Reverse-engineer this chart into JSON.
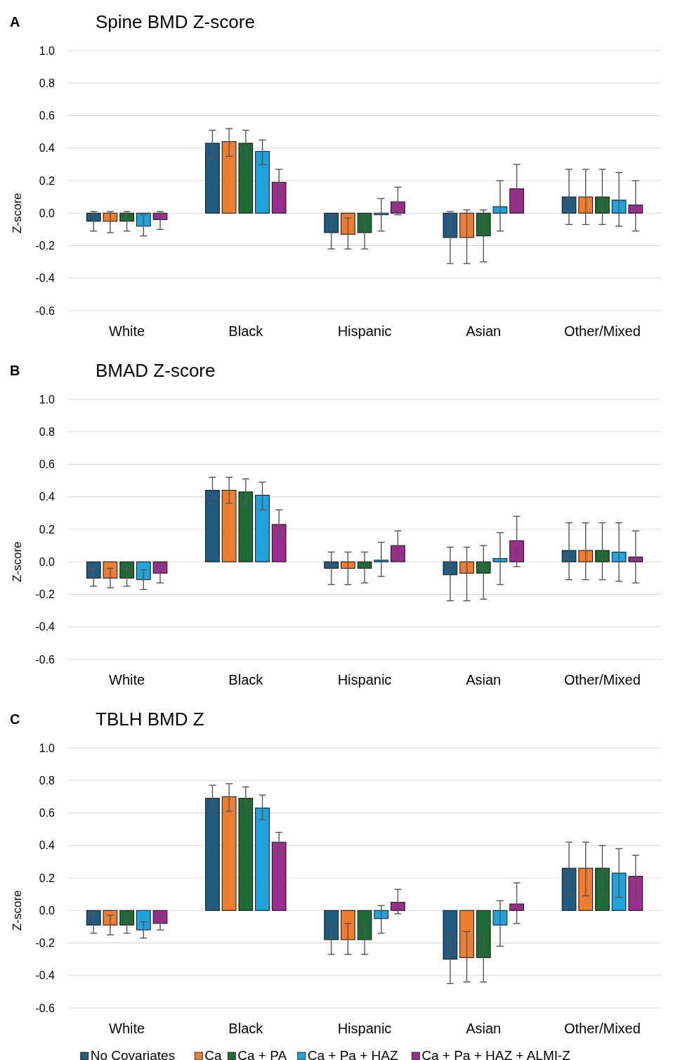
{
  "chart_data": [
    {
      "type": "bar",
      "title": "Spine BMD Z-score",
      "ylabel": "Z-score",
      "annotations": [
        "A"
      ],
      "categories": [
        "White",
        "Black",
        "Hispanic",
        "Asian",
        "Other/Mixed"
      ],
      "ylim": [
        -0.6,
        1.0
      ],
      "yticks": [
        {
          "value": -0.6,
          "label": "-0.6"
        },
        {
          "value": -0.4,
          "label": "-0.4"
        },
        {
          "value": -0.2,
          "label": "-0.2"
        },
        {
          "value": 0,
          "label": "0.0"
        },
        {
          "value": 0.2,
          "label": "0.2"
        },
        {
          "value": 0.4,
          "label": "0.4"
        },
        {
          "value": 0.6,
          "label": "0.6"
        },
        {
          "value": 0.8,
          "label": "0.8"
        },
        {
          "value": 1.0,
          "label": "1.0"
        }
      ],
      "grid": "y",
      "legend": false,
      "series": [
        {
          "color": "#1f5c80",
          "values": [
            -0.05,
            0.43,
            -0.12,
            -0.15,
            0.1
          ],
          "errors": [
            [
              -0.11,
              0.01
            ],
            [
              0.34,
              0.51
            ],
            [
              -0.22,
              -0.03
            ],
            [
              -0.31,
              0.01
            ],
            [
              -0.07,
              0.27
            ]
          ]
        },
        {
          "color": "#ed7d31",
          "values": [
            -0.05,
            0.44,
            -0.13,
            -0.15,
            0.1
          ],
          "errors": [
            [
              -0.12,
              0.01
            ],
            [
              0.35,
              0.52
            ],
            [
              -0.22,
              -0.03
            ],
            [
              -0.31,
              0.02
            ],
            [
              -0.07,
              0.27
            ]
          ]
        },
        {
          "color": "#1e6b35",
          "values": [
            -0.05,
            0.43,
            -0.12,
            -0.14,
            0.1
          ],
          "errors": [
            [
              -0.11,
              0.01
            ],
            [
              0.34,
              0.51
            ],
            [
              -0.22,
              -0.03
            ],
            [
              -0.3,
              0.02
            ],
            [
              -0.07,
              0.27
            ]
          ]
        },
        {
          "color": "#1ea3dc",
          "values": [
            -0.08,
            0.38,
            -0.01,
            0.04,
            0.08
          ],
          "errors": [
            [
              -0.14,
              -0.01
            ],
            [
              0.3,
              0.45
            ],
            [
              -0.11,
              0.09
            ],
            [
              -0.11,
              0.2
            ],
            [
              -0.08,
              0.25
            ]
          ]
        },
        {
          "color": "#9b2d8f",
          "values": [
            -0.04,
            0.19,
            0.07,
            0.15,
            0.05
          ],
          "errors": [
            [
              -0.1,
              0.01
            ],
            [
              0.11,
              0.27
            ],
            [
              -0.01,
              0.16
            ],
            [
              0.01,
              0.3
            ],
            [
              -0.11,
              0.2
            ]
          ]
        }
      ]
    },
    {
      "type": "bar",
      "title": "BMAD Z-score",
      "ylabel": "Z-score",
      "annotations": [
        "B"
      ],
      "categories": [
        "White",
        "Black",
        "Hispanic",
        "Asian",
        "Other/Mixed"
      ],
      "ylim": [
        -0.6,
        1.0
      ],
      "yticks": [
        {
          "value": -0.6,
          "label": "-0.6"
        },
        {
          "value": -0.4,
          "label": "-0.4"
        },
        {
          "value": -0.2,
          "label": "-0.2"
        },
        {
          "value": 0,
          "label": "0.0"
        },
        {
          "value": 0.2,
          "label": "0.2"
        },
        {
          "value": 0.4,
          "label": "0.4"
        },
        {
          "value": 0.6,
          "label": "0.6"
        },
        {
          "value": 0.8,
          "label": "0.8"
        },
        {
          "value": 1.0,
          "label": "1.0"
        }
      ],
      "grid": "y",
      "legend": false,
      "series": [
        {
          "color": "#1f5c80",
          "values": [
            -0.1,
            0.44,
            -0.04,
            -0.08,
            0.07
          ],
          "errors": [
            [
              -0.15,
              -0.04
            ],
            [
              0.36,
              0.52
            ],
            [
              -0.14,
              0.06
            ],
            [
              -0.24,
              0.09
            ],
            [
              -0.11,
              0.24
            ]
          ]
        },
        {
          "color": "#ed7d31",
          "values": [
            -0.1,
            0.44,
            -0.04,
            -0.07,
            0.07
          ],
          "errors": [
            [
              -0.16,
              -0.04
            ],
            [
              0.36,
              0.52
            ],
            [
              -0.14,
              0.06
            ],
            [
              -0.24,
              0.09
            ],
            [
              -0.11,
              0.24
            ]
          ]
        },
        {
          "color": "#1e6b35",
          "values": [
            -0.1,
            0.43,
            -0.04,
            -0.07,
            0.07
          ],
          "errors": [
            [
              -0.15,
              -0.04
            ],
            [
              0.35,
              0.51
            ],
            [
              -0.13,
              0.06
            ],
            [
              -0.23,
              0.1
            ],
            [
              -0.11,
              0.24
            ]
          ]
        },
        {
          "color": "#1ea3dc",
          "values": [
            -0.11,
            0.41,
            0.01,
            0.02,
            0.06
          ],
          "errors": [
            [
              -0.17,
              -0.05
            ],
            [
              0.32,
              0.49
            ],
            [
              -0.09,
              0.12
            ],
            [
              -0.14,
              0.18
            ],
            [
              -0.12,
              0.24
            ]
          ]
        },
        {
          "color": "#9b2d8f",
          "values": [
            -0.07,
            0.23,
            0.1,
            0.13,
            0.03
          ],
          "errors": [
            [
              -0.13,
              -0.01
            ],
            [
              0.15,
              0.32
            ],
            [
              0.0,
              0.19
            ],
            [
              -0.03,
              0.28
            ],
            [
              -0.13,
              0.19
            ]
          ]
        }
      ]
    },
    {
      "type": "bar",
      "title": "TBLH BMD Z",
      "ylabel": "Z-score",
      "annotations": [
        "C"
      ],
      "categories": [
        "White",
        "Black",
        "Hispanic",
        "Asian",
        "Other/Mixed"
      ],
      "ylim": [
        -0.6,
        1.0
      ],
      "yticks": [
        {
          "value": -0.6,
          "label": "-0.6"
        },
        {
          "value": -0.4,
          "label": "-0.4"
        },
        {
          "value": -0.2,
          "label": "-0.2"
        },
        {
          "value": 0,
          "label": "0.0"
        },
        {
          "value": 0.2,
          "label": "0.2"
        },
        {
          "value": 0.4,
          "label": "0.4"
        },
        {
          "value": 0.6,
          "label": "0.6"
        },
        {
          "value": 0.8,
          "label": "0.8"
        },
        {
          "value": 1.0,
          "label": "1.0"
        }
      ],
      "grid": "y",
      "legend": "bottom",
      "series": [
        {
          "name": "No Covariates",
          "color": "#1f5c80",
          "values": [
            -0.09,
            0.69,
            -0.18,
            -0.3,
            0.26
          ],
          "errors": [
            [
              -0.14,
              -0.02
            ],
            [
              0.6,
              0.77
            ],
            [
              -0.27,
              -0.08
            ],
            [
              -0.45,
              -0.14
            ],
            [
              0.09,
              0.42
            ]
          ]
        },
        {
          "name": "Ca",
          "color": "#ed7d31",
          "values": [
            -0.09,
            0.7,
            -0.18,
            -0.29,
            0.26
          ],
          "errors": [
            [
              -0.15,
              -0.03
            ],
            [
              0.61,
              0.78
            ],
            [
              -0.27,
              -0.08
            ],
            [
              -0.44,
              -0.13
            ],
            [
              0.09,
              0.42
            ]
          ]
        },
        {
          "name": "Ca + PA",
          "color": "#1e6b35",
          "values": [
            -0.09,
            0.69,
            -0.18,
            -0.29,
            0.26
          ],
          "errors": [
            [
              -0.14,
              -0.03
            ],
            [
              0.6,
              0.76
            ],
            [
              -0.27,
              -0.09
            ],
            [
              -0.44,
              -0.14
            ],
            [
              0.09,
              0.4
            ]
          ]
        },
        {
          "name": "Ca + Pa + HAZ",
          "color": "#1ea3dc",
          "values": [
            -0.12,
            0.63,
            -0.05,
            -0.09,
            0.23
          ],
          "errors": [
            [
              -0.17,
              -0.07
            ],
            [
              0.56,
              0.71
            ],
            [
              -0.14,
              0.03
            ],
            [
              -0.22,
              0.06
            ],
            [
              0.08,
              0.38
            ]
          ]
        },
        {
          "name": "Ca + Pa + HAZ + ALMI-Z",
          "color": "#9b2d8f",
          "values": [
            -0.08,
            0.42,
            0.05,
            0.04,
            0.21
          ],
          "errors": [
            [
              -0.12,
              -0.03
            ],
            [
              0.35,
              0.48
            ],
            [
              -0.02,
              0.13
            ],
            [
              -0.08,
              0.17
            ],
            [
              0.07,
              0.34
            ]
          ]
        }
      ]
    }
  ]
}
